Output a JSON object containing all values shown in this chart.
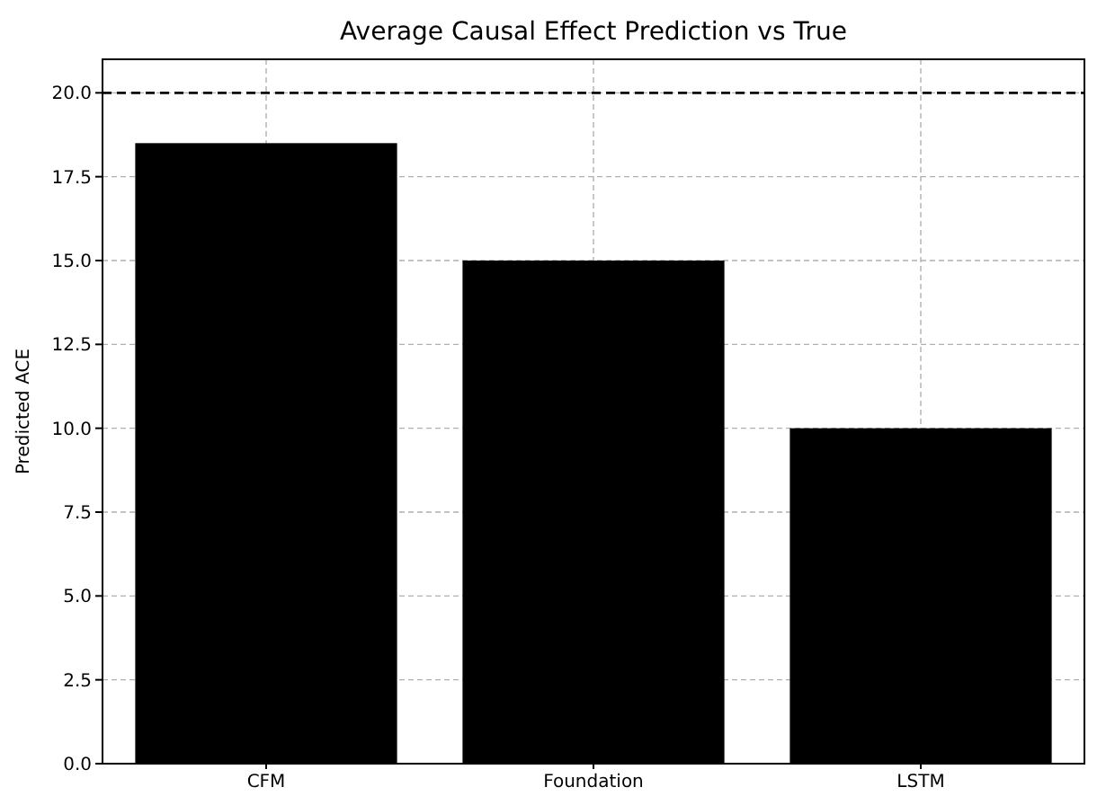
{
  "chart_data": {
    "type": "bar",
    "title": "Average Causal Effect Prediction vs True",
    "ylabel": "Predicted ACE",
    "categories": [
      "CFM",
      "Foundation",
      "LSTM"
    ],
    "values": [
      18.5,
      15.0,
      10.0
    ],
    "color": "#000000",
    "ylim": [
      0,
      21
    ],
    "yticks": [
      {
        "value": 0,
        "label": "0.0"
      },
      {
        "value": 2.5,
        "label": "2.5"
      },
      {
        "value": 5,
        "label": "5.0"
      },
      {
        "value": 7.5,
        "label": "7.5"
      },
      {
        "value": 10,
        "label": "10.0"
      },
      {
        "value": 12.5,
        "label": "12.5"
      },
      {
        "value": 15,
        "label": "15.0"
      },
      {
        "value": 17.5,
        "label": "17.5"
      },
      {
        "value": 20,
        "label": "20.0"
      }
    ],
    "grid": true,
    "ref_lines": [
      {
        "axis": "y",
        "value": 20,
        "color": "#000000",
        "line_style": "dashed"
      }
    ]
  }
}
